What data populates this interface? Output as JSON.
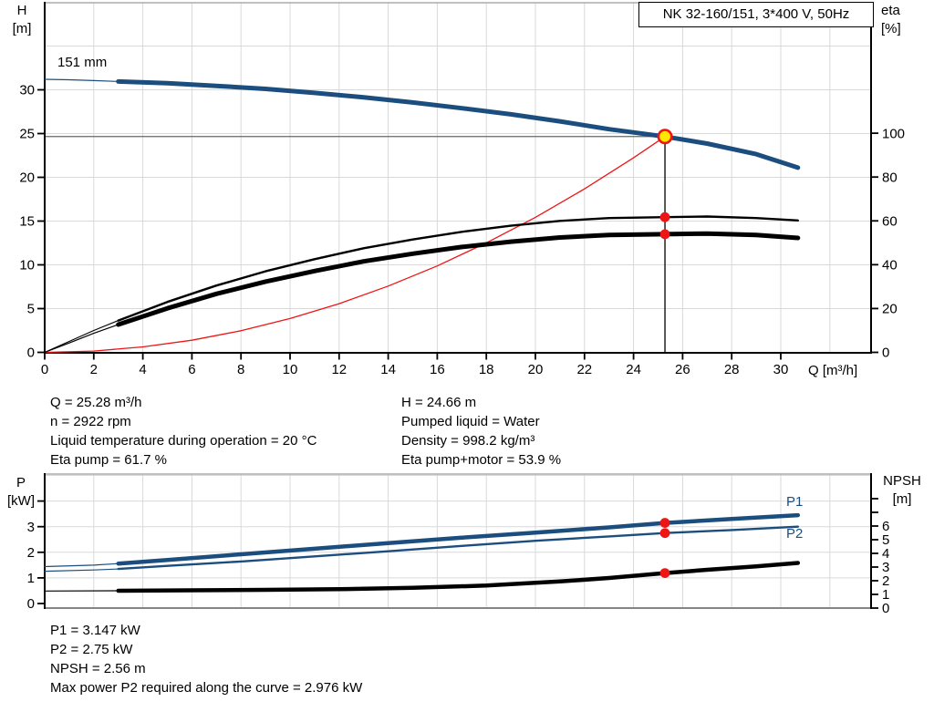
{
  "colors": {
    "blue": "#1b4e7e",
    "red": "#ee1515",
    "black": "#000000",
    "yellow": "#ffe600",
    "grid": "#d9d9d9",
    "frame": "#9a9a9a",
    "frame_dark": "#858585",
    "guide": "#666666"
  },
  "labels": {
    "h_axis": [
      "H",
      "[m]"
    ],
    "eta_axis": [
      "eta",
      "[%]"
    ],
    "p_axis": [
      "P",
      "[kW]"
    ],
    "npsh_axis": [
      "NPSH",
      "[m]"
    ],
    "q_axis": "Q [m³/h]"
  },
  "chart_data": [
    {
      "id": "qh-eta-chart",
      "type": "line",
      "title": "NK 32-160/151, 3*400 V, 50Hz",
      "curve_label": "151 mm",
      "x_axis": {
        "label": "Q [m³/h]",
        "ticks": [
          0,
          2,
          4,
          6,
          8,
          10,
          12,
          14,
          16,
          18,
          20,
          22,
          24,
          26,
          28,
          30
        ],
        "range": [
          0,
          33.7
        ],
        "grid": true
      },
      "y_left": {
        "label": "H [m]",
        "ticks": [
          0,
          5,
          10,
          15,
          20,
          25,
          30
        ],
        "range": [
          0,
          40
        ],
        "grid": true
      },
      "y_right": {
        "label": "eta [%]",
        "ticks": [
          0,
          20,
          40,
          60,
          80,
          100
        ],
        "range": [
          0,
          160
        ]
      },
      "duty_point": {
        "q": 25.28,
        "h": 24.66
      },
      "series": [
        {
          "name": "system-curve",
          "axis": "left",
          "color": "red",
          "width": 1.3,
          "points": [
            [
              0,
              0
            ],
            [
              2,
              0.15
            ],
            [
              4,
              0.62
            ],
            [
              6,
              1.39
            ],
            [
              8,
              2.47
            ],
            [
              10,
              3.86
            ],
            [
              12,
              5.56
            ],
            [
              14,
              7.57
            ],
            [
              16,
              9.88
            ],
            [
              18,
              12.51
            ],
            [
              20,
              15.43
            ],
            [
              22,
              18.68
            ],
            [
              24,
              22.23
            ],
            [
              25.28,
              24.66
            ]
          ]
        },
        {
          "name": "eta-pump-curve",
          "axis": "right",
          "color": "black",
          "width": 2.4,
          "thin_until": 3,
          "points": [
            [
              0,
              0
            ],
            [
              1,
              5
            ],
            [
              2,
              10
            ],
            [
              3,
              14.5
            ],
            [
              5,
              23
            ],
            [
              7,
              30.5
            ],
            [
              9,
              37
            ],
            [
              11,
              42.5
            ],
            [
              13,
              47.5
            ],
            [
              15,
              51.5
            ],
            [
              17,
              55
            ],
            [
              19,
              57.8
            ],
            [
              21,
              60
            ],
            [
              23,
              61.3
            ],
            [
              25.28,
              61.7
            ],
            [
              27,
              62
            ],
            [
              29,
              61.3
            ],
            [
              30.7,
              60.2
            ]
          ]
        },
        {
          "name": "eta-pump-motor-curve",
          "axis": "right",
          "color": "black",
          "width": 5,
          "thin_until": 3,
          "points": [
            [
              0,
              0
            ],
            [
              1,
              4.3
            ],
            [
              2,
              8.7
            ],
            [
              3,
              12.7
            ],
            [
              5,
              20.1
            ],
            [
              7,
              26.7
            ],
            [
              9,
              32.3
            ],
            [
              11,
              37.1
            ],
            [
              13,
              41.5
            ],
            [
              15,
              45
            ],
            [
              17,
              48.1
            ],
            [
              19,
              50.5
            ],
            [
              21,
              52.4
            ],
            [
              23,
              53.6
            ],
            [
              25.28,
              53.9
            ],
            [
              27,
              54.2
            ],
            [
              29,
              53.6
            ],
            [
              30.7,
              52.2
            ]
          ]
        },
        {
          "name": "pump-curve-151mm",
          "label": "151 mm",
          "axis": "left",
          "color": "blue",
          "width": 5,
          "thin_until": 3,
          "points": [
            [
              0,
              31.2
            ],
            [
              1,
              31.15
            ],
            [
              2,
              31.05
            ],
            [
              3,
              30.95
            ],
            [
              5,
              30.75
            ],
            [
              7,
              30.45
            ],
            [
              9,
              30.1
            ],
            [
              11,
              29.65
            ],
            [
              13,
              29.15
            ],
            [
              15,
              28.55
            ],
            [
              17,
              27.9
            ],
            [
              19,
              27.2
            ],
            [
              21,
              26.4
            ],
            [
              23,
              25.5
            ],
            [
              25.28,
              24.66
            ],
            [
              27,
              23.85
            ],
            [
              29,
              22.65
            ],
            [
              30.7,
              21.1
            ]
          ]
        }
      ],
      "markers": [
        {
          "name": "eta-pump-point",
          "axis": "right",
          "x": 25.28,
          "y": 61.7,
          "style": "dot"
        },
        {
          "name": "eta-pump-motor-point",
          "axis": "right",
          "x": 25.28,
          "y": 53.9,
          "style": "dot"
        },
        {
          "name": "duty-point",
          "axis": "left",
          "x": 25.28,
          "y": 24.66,
          "style": "duty"
        }
      ]
    },
    {
      "id": "power-npsh-chart",
      "type": "line",
      "x_axis": {
        "ticks": [],
        "range": [
          0,
          33.7
        ],
        "grid": true
      },
      "y_left": {
        "label": "P [kW]",
        "ticks": [
          0,
          1,
          2,
          3
        ],
        "extra_ticks": [
          4
        ],
        "range": [
          0,
          5.2
        ],
        "grid": true
      },
      "y_right": {
        "label": "NPSH [m]",
        "ticks": [
          0,
          1,
          2,
          3,
          4,
          5,
          6
        ],
        "extra_ticks": [
          7,
          8
        ],
        "range": [
          0,
          9.8
        ]
      },
      "series": [
        {
          "name": "p1-curve",
          "label": "P1",
          "axis": "left",
          "color": "blue",
          "width": 4.5,
          "thin_until": 3,
          "points": [
            [
              0,
              1.44
            ],
            [
              2,
              1.5
            ],
            [
              3,
              1.56
            ],
            [
              5,
              1.7
            ],
            [
              8,
              1.92
            ],
            [
              11,
              2.14
            ],
            [
              14,
              2.36
            ],
            [
              17,
              2.57
            ],
            [
              20,
              2.77
            ],
            [
              23,
              2.97
            ],
            [
              25.28,
              3.147
            ],
            [
              28,
              3.3
            ],
            [
              30.7,
              3.45
            ]
          ]
        },
        {
          "name": "p2-curve",
          "label": "P2",
          "axis": "left",
          "color": "blue",
          "width": 2.4,
          "thin_until": 3,
          "points": [
            [
              0,
              1.26
            ],
            [
              2,
              1.31
            ],
            [
              3,
              1.35
            ],
            [
              5,
              1.47
            ],
            [
              8,
              1.64
            ],
            [
              11,
              1.84
            ],
            [
              14,
              2.04
            ],
            [
              17,
              2.25
            ],
            [
              20,
              2.45
            ],
            [
              23,
              2.62
            ],
            [
              25.28,
              2.75
            ],
            [
              28,
              2.87
            ],
            [
              30.7,
              3.0
            ]
          ]
        },
        {
          "name": "npsh-curve",
          "axis": "right",
          "color": "black",
          "width": 4.5,
          "thin_until": 3,
          "points": [
            [
              0,
              1.25
            ],
            [
              3,
              1.27
            ],
            [
              6,
              1.3
            ],
            [
              9,
              1.33
            ],
            [
              12,
              1.38
            ],
            [
              15,
              1.48
            ],
            [
              18,
              1.65
            ],
            [
              21,
              1.95
            ],
            [
              23,
              2.2
            ],
            [
              25.28,
              2.56
            ],
            [
              27,
              2.8
            ],
            [
              29,
              3.05
            ],
            [
              30.7,
              3.3
            ]
          ]
        }
      ],
      "markers": [
        {
          "name": "p1-point",
          "axis": "left",
          "x": 25.28,
          "y": 3.147,
          "style": "dot"
        },
        {
          "name": "p2-point",
          "axis": "left",
          "x": 25.28,
          "y": 2.75,
          "style": "dot"
        },
        {
          "name": "npsh-point",
          "axis": "right",
          "x": 25.28,
          "y": 2.56,
          "style": "dot"
        }
      ]
    }
  ],
  "info_top": {
    "left": [
      "Q = 25.28 m³/h",
      "n = 2922 rpm",
      "Liquid temperature during operation = 20 °C",
      "Eta pump = 61.7 %"
    ],
    "right": [
      "H = 24.66 m",
      "Pumped liquid = Water",
      "Density = 998.2 kg/m³",
      "Eta pump+motor = 53.9 %"
    ]
  },
  "info_bottom": [
    "P1 = 3.147 kW",
    "P2 = 2.75 kW",
    "NPSH = 2.56 m",
    "Max power P2 required along the curve = 2.976 kW"
  ]
}
